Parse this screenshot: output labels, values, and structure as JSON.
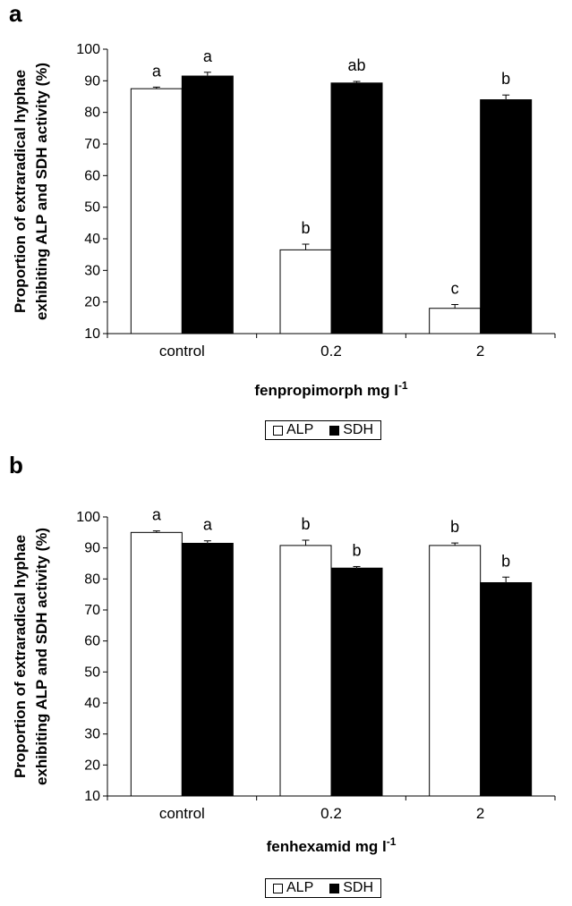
{
  "chart_data": [
    {
      "type": "bar",
      "panel_label": "a",
      "categories": [
        "control",
        "0.2",
        "2"
      ],
      "series": [
        {
          "name": "ALP",
          "color": "#ffffff",
          "values": [
            87.5,
            36.5,
            18
          ],
          "errors": [
            0.5,
            1.8,
            1.2
          ],
          "letters": [
            "a",
            "b",
            "c"
          ]
        },
        {
          "name": "SDH",
          "color": "#000000",
          "values": [
            91.5,
            89.3,
            84
          ],
          "errors": [
            1.2,
            0.5,
            1.5
          ],
          "letters": [
            "a",
            "ab",
            "b"
          ]
        }
      ],
      "title": "",
      "xlabel": "fenpropimorph mg l",
      "xlabel_sup": "-1",
      "ylabel_line1": "Proportion of extraradical hyphae",
      "ylabel_line2": "exhibiting ALP and SDH activity (%)",
      "ylim": [
        10,
        100
      ],
      "yticks": [
        10,
        20,
        30,
        40,
        50,
        60,
        70,
        80,
        90,
        100
      ],
      "legend_position": "bottom-center",
      "grid": false
    },
    {
      "type": "bar",
      "panel_label": "b",
      "categories": [
        "control",
        "0.2",
        "2"
      ],
      "series": [
        {
          "name": "ALP",
          "color": "#ffffff",
          "values": [
            95,
            90.8,
            90.8
          ],
          "errors": [
            0.5,
            1.7,
            0.8
          ],
          "letters": [
            "a",
            "b",
            "b"
          ]
        },
        {
          "name": "SDH",
          "color": "#000000",
          "values": [
            91.5,
            83.5,
            78.8
          ],
          "errors": [
            0.8,
            0.5,
            1.8
          ],
          "letters": [
            "a",
            "b",
            "b"
          ]
        }
      ],
      "title": "",
      "xlabel": "fenhexamid mg l",
      "xlabel_sup": "-1",
      "ylabel_line1": "Proportion of extraradical hyphae",
      "ylabel_line2": "exhibiting ALP and SDH activity (%)",
      "ylim": [
        10,
        100
      ],
      "yticks": [
        10,
        20,
        30,
        40,
        50,
        60,
        70,
        80,
        90,
        100
      ],
      "legend_position": "bottom-center",
      "grid": false
    }
  ]
}
